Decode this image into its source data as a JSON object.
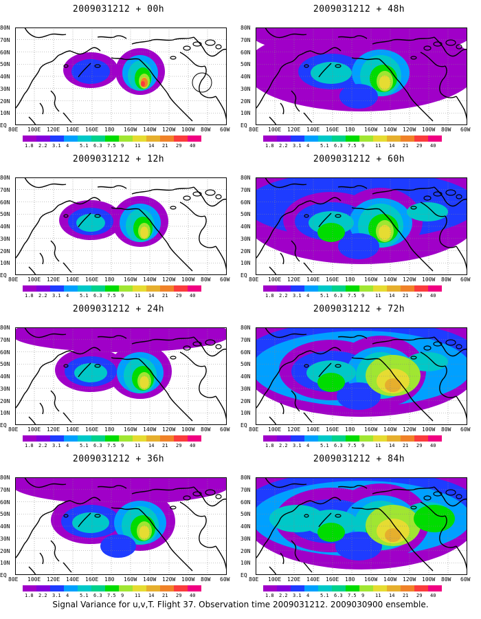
{
  "panels": [
    {
      "title": "2009031212 + 00h",
      "level": 0
    },
    {
      "title": "2009031212 + 48h",
      "level": 4
    },
    {
      "title": "2009031212 + 12h",
      "level": 1
    },
    {
      "title": "2009031212 + 60h",
      "level": 5
    },
    {
      "title": "2009031212 + 24h",
      "level": 2
    },
    {
      "title": "2009031212 + 72h",
      "level": 6
    },
    {
      "title": "2009031212 + 36h",
      "level": 3
    },
    {
      "title": "2009031212 + 84h",
      "level": 7
    }
  ],
  "lat_labels": [
    "80N",
    "70N",
    "60N",
    "50N",
    "40N",
    "30N",
    "20N",
    "10N",
    "EQ"
  ],
  "lon_labels": [
    "80E",
    "100E",
    "120E",
    "140E",
    "160E",
    "180",
    "160W",
    "140W",
    "120W",
    "100W",
    "80W",
    "60W"
  ],
  "colorbar": {
    "labels": [
      "1.8",
      "2.2",
      "3.1",
      "4",
      "5.1",
      "6.3",
      "7.5",
      "9",
      "11",
      "14",
      "21",
      "29",
      "40"
    ],
    "colors": [
      "#a000c8",
      "#8200dc",
      "#1e3cff",
      "#00a0ff",
      "#00c8c8",
      "#00d28c",
      "#00dc00",
      "#a0e632",
      "#e6dc32",
      "#e6af2d",
      "#f08228",
      "#fa3c3c",
      "#f00082"
    ]
  },
  "footer": "Signal Variance for u,v,T. Flight 37. Observation time 2009031212. 2009030900 ensemble."
}
